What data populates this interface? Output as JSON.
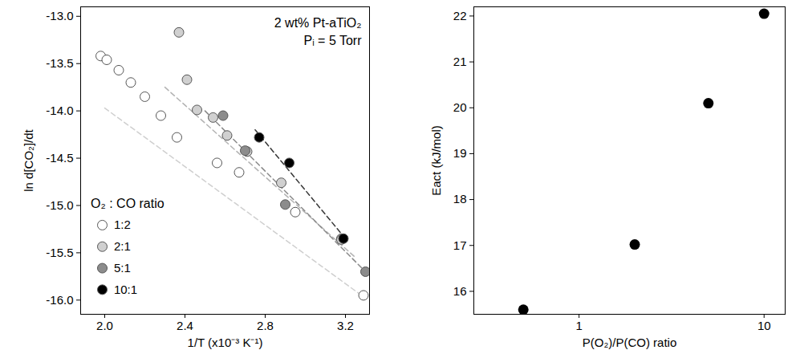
{
  "chart_data": [
    {
      "type": "scatter",
      "annotations": [
        "2 wt% Pt-aTiO₂",
        "Pᵢ = 5 Torr"
      ],
      "x_label": "1/T (x10⁻³ K⁻¹)",
      "y_label": "ln d[CO₂]/dt",
      "legend_title": "O₂ : CO ratio",
      "legend": "lower left",
      "marker": "circle",
      "line_style": "dashed",
      "xlim": [
        1.88,
        3.32
      ],
      "ylim": [
        -16.15,
        -12.9
      ],
      "xticks": [
        {
          "value": 2,
          "label": "2.0"
        },
        2.4,
        2.8,
        3.2
      ],
      "yticks": [
        {
          "value": -13,
          "label": "-13.0"
        },
        -13.5,
        {
          "value": -14,
          "label": "-14.0"
        },
        -14.5,
        {
          "value": -15,
          "label": "-15.0"
        },
        -15.5,
        {
          "value": -16,
          "label": "-16.0"
        }
      ],
      "series": [
        {
          "name": "1:2",
          "color": "#ffffff",
          "x": [
            1.98,
            2.01,
            2.07,
            2.13,
            2.2,
            2.28,
            2.36,
            2.56,
            2.67,
            2.95,
            3.18,
            3.29
          ],
          "y": [
            -13.42,
            -13.46,
            -13.57,
            -13.7,
            -13.85,
            -14.05,
            -14.28,
            -14.55,
            -14.65,
            -15.07,
            -15.35,
            -15.95
          ],
          "fit": {
            "x": [
              2.0,
              3.28
            ],
            "y": [
              -13.97,
              -15.95
            ]
          }
        },
        {
          "name": "2:1",
          "color": "#d0d0d0",
          "x": [
            2.37,
            2.41,
            2.46,
            2.54,
            2.61,
            2.71,
            2.88,
            3.18
          ],
          "y": [
            -13.17,
            -13.67,
            -13.99,
            -14.07,
            -14.26,
            -14.43,
            -14.76,
            -15.36
          ],
          "fit": {
            "x": [
              2.3,
              3.25
            ],
            "y": [
              -13.75,
              -15.55
            ]
          }
        },
        {
          "name": "5:1",
          "color": "#8c8c8c",
          "x": [
            2.59,
            2.7,
            2.9,
            3.3
          ],
          "y": [
            -14.05,
            -14.42,
            -14.99,
            -15.7
          ],
          "fit": {
            "x": [
              2.5,
              3.3
            ],
            "y": [
              -14.0,
              -15.7
            ]
          }
        },
        {
          "name": "10:1",
          "color": "#000000",
          "x": [
            2.77,
            2.92,
            3.19
          ],
          "y": [
            -14.28,
            -14.55,
            -15.35
          ],
          "fit": {
            "x": [
              2.75,
              3.2
            ],
            "y": [
              -14.2,
              -15.35
            ]
          }
        }
      ]
    },
    {
      "type": "scatter",
      "x_label": "P(O₂)/P(CO) ratio",
      "y_label": "Eact (kJ/mol)",
      "log": "x",
      "marker": "circle",
      "color": "#000000",
      "xlim": [
        0.27,
        13
      ],
      "ylim": [
        15.5,
        22.2
      ],
      "xticks": [
        1,
        10
      ],
      "yticks": [
        16,
        17,
        18,
        19,
        20,
        21,
        22
      ],
      "x": [
        0.5,
        2,
        5,
        10
      ],
      "values": [
        15.6,
        17.02,
        20.1,
        22.05
      ]
    }
  ]
}
